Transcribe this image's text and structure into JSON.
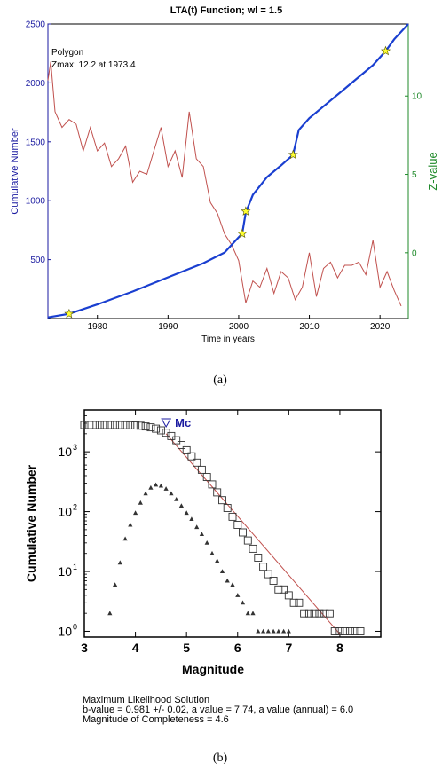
{
  "figure": {
    "panel_a_caption": "(a)",
    "panel_b_caption": "(b)"
  },
  "chart_data": [
    {
      "type": "line",
      "title": "LTA(t) Function; wl = 1.5",
      "xlabel": "Time in years",
      "ylabel_left": "Cumulative Number",
      "ylabel_right": "Z-value",
      "annotation_lines": [
        "Polygon",
        "Zmax: 12.2 at 1973.4"
      ],
      "xlim": [
        1973,
        2024
      ],
      "ylim_left": [
        0,
        2500
      ],
      "ylim_right": [
        -4.2,
        14.6
      ],
      "x_ticks": [
        1980,
        1990,
        2000,
        2010,
        2020
      ],
      "y_ticks_left": [
        500,
        1000,
        1500,
        2000,
        2500
      ],
      "y_ticks_right": [
        0,
        5,
        10
      ],
      "colors": {
        "cumulative": "#1a3fd0",
        "zvalue": "#c0504d",
        "star": "#ffff33",
        "left_axis": "#1a1aa0",
        "right_axis": "#1f8a2a"
      },
      "series": [
        {
          "name": "Cumulative Number",
          "axis": "left",
          "x": [
            1973,
            1976,
            1980,
            1985,
            1990,
            1995,
            1998,
            2000,
            2000.5,
            2001,
            2002,
            2004,
            2006,
            2007.7,
            2008.5,
            2010,
            2013,
            2016,
            2019,
            2020.8,
            2022,
            2024
          ],
          "y": [
            10,
            40,
            120,
            230,
            350,
            470,
            560,
            690,
            720,
            900,
            1050,
            1200,
            1300,
            1390,
            1600,
            1700,
            1850,
            2000,
            2150,
            2270,
            2370,
            2500
          ]
        },
        {
          "name": "Z-value",
          "axis": "right",
          "x": [
            1973,
            1973.4,
            1974,
            1975,
            1976,
            1977,
            1978,
            1979,
            1980,
            1981,
            1982,
            1983,
            1984,
            1985,
            1986,
            1987,
            1988,
            1989,
            1990,
            1991,
            1992,
            1993,
            1994,
            1995,
            1996,
            1997,
            1998,
            1999,
            2000,
            2001,
            2002,
            2003,
            2004,
            2005,
            2006,
            2007,
            2008,
            2009,
            2010,
            2011,
            2012,
            2013,
            2014,
            2015,
            2016,
            2017,
            2018,
            2019,
            2020,
            2021,
            2022,
            2023
          ],
          "y": [
            11,
            12.2,
            9,
            8,
            8.5,
            8.2,
            6.5,
            8,
            6.5,
            7,
            5.5,
            6,
            6.8,
            4.5,
            5.2,
            5,
            6.5,
            8,
            5.5,
            6.5,
            4.8,
            9,
            6,
            5.5,
            3.2,
            2.5,
            1.2,
            0.5,
            -0.5,
            -3.2,
            -1.8,
            -2.2,
            -1,
            -2.6,
            -1.2,
            -1.6,
            -3,
            -2.2,
            0,
            -2.8,
            -1,
            -0.6,
            -1.6,
            -0.8,
            -0.8,
            -0.6,
            -1.4,
            0.8,
            -2.2,
            -1.2,
            -2.4,
            -3.4
          ]
        }
      ],
      "markers": [
        {
          "x": 1976,
          "y": 40
        },
        {
          "x": 2000.5,
          "y": 720
        },
        {
          "x": 2001,
          "y": 910
        },
        {
          "x": 2007.7,
          "y": 1390
        },
        {
          "x": 2020.8,
          "y": 2270
        }
      ]
    },
    {
      "type": "scatter",
      "xlabel": "Magnitude",
      "ylabel": "Cumulative Number",
      "yscale": "log",
      "xlim": [
        3,
        8.8
      ],
      "ylim": [
        0.8,
        5000
      ],
      "x_ticks": [
        3,
        4,
        5,
        6,
        7,
        8
      ],
      "y_ticks": [
        "10^0",
        "10^1",
        "10^2",
        "10^3"
      ],
      "y_tick_values": [
        1,
        10,
        100,
        1000
      ],
      "mc_label": "Mc",
      "mc_value": 4.6,
      "colors": {
        "mc": "#1a1aa0",
        "fit": "#c0504d",
        "points": "#333333"
      },
      "cumulative_points": {
        "x": [
          3.0,
          3.1,
          3.2,
          3.3,
          3.4,
          3.5,
          3.6,
          3.7,
          3.8,
          3.9,
          4.0,
          4.1,
          4.2,
          4.3,
          4.4,
          4.5,
          4.6,
          4.7,
          4.8,
          4.9,
          5.0,
          5.1,
          5.2,
          5.3,
          5.4,
          5.5,
          5.6,
          5.7,
          5.8,
          5.9,
          6.0,
          6.1,
          6.2,
          6.3,
          6.4,
          6.5,
          6.6,
          6.7,
          6.8,
          6.9,
          7.0,
          7.1,
          7.2,
          7.3,
          7.4,
          7.5,
          7.6,
          7.7,
          7.8,
          7.9,
          8.0,
          8.1,
          8.2,
          8.3,
          8.4
        ],
        "y": [
          2800,
          2800,
          2800,
          2800,
          2800,
          2800,
          2800,
          2790,
          2780,
          2770,
          2750,
          2720,
          2650,
          2560,
          2430,
          2280,
          2080,
          1830,
          1560,
          1300,
          1060,
          840,
          660,
          500,
          380,
          285,
          210,
          155,
          115,
          82,
          60,
          45,
          33,
          24,
          17,
          12,
          9,
          7,
          5,
          5,
          4,
          3,
          3,
          2,
          2,
          2,
          2,
          2,
          2,
          1,
          1,
          1,
          1,
          1,
          1
        ]
      },
      "noncumulative_points": {
        "x": [
          3.5,
          3.6,
          3.7,
          3.8,
          3.9,
          4.0,
          4.1,
          4.2,
          4.3,
          4.4,
          4.5,
          4.6,
          4.7,
          4.8,
          4.9,
          5.0,
          5.1,
          5.2,
          5.3,
          5.4,
          5.5,
          5.6,
          5.7,
          5.8,
          5.9,
          6.0,
          6.1,
          6.2,
          6.3,
          6.4,
          6.5,
          6.6,
          6.7,
          6.8,
          6.9,
          7.0
        ],
        "y": [
          2,
          6,
          14,
          35,
          60,
          95,
          140,
          200,
          250,
          280,
          270,
          240,
          200,
          160,
          125,
          95,
          75,
          55,
          42,
          30,
          20,
          15,
          10,
          7,
          6,
          4,
          3,
          2,
          2,
          1,
          1,
          1,
          1,
          1,
          1,
          1
        ]
      },
      "fit_line": {
        "x": [
          4.6,
          8.0
        ],
        "y": [
          2000,
          0.9
        ]
      },
      "solution_text": [
        "Maximum Likelihood Solution",
        "b-value = 0.981 +/- 0.02,  a value = 7.74,  a value (annual) = 6.0",
        "Magnitude of Completeness = 4.6"
      ]
    }
  ]
}
